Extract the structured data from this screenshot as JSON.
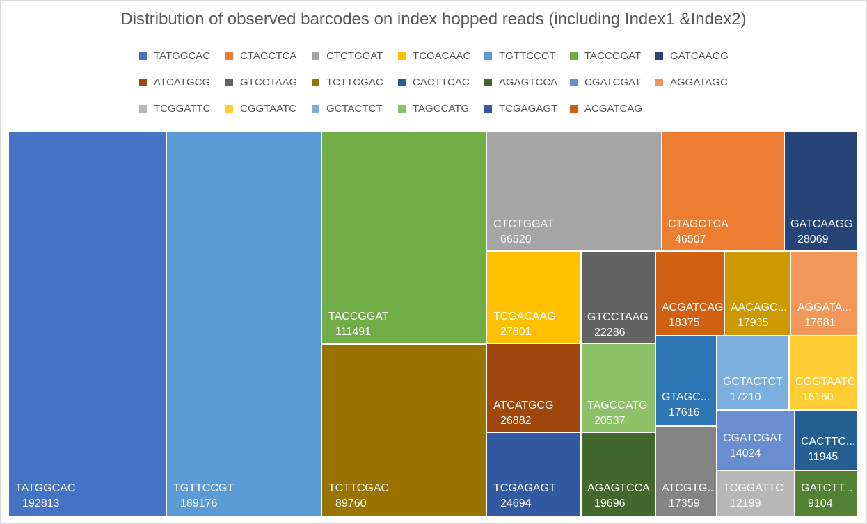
{
  "chart_data": {
    "type": "treemap",
    "title": "Distribution of observed barcodes on index hopped reads (including Index1 &Index2)",
    "legend": {
      "placement": "top",
      "entries": [
        {
          "name": "TATGGCAC",
          "color": "#4472c4"
        },
        {
          "name": "CTAGCTCA",
          "color": "#ed7d31"
        },
        {
          "name": "CTCTGGAT",
          "color": "#a5a5a5"
        },
        {
          "name": "TCGACAAG",
          "color": "#ffc000"
        },
        {
          "name": "TGTTCCGT",
          "color": "#5b9bd5"
        },
        {
          "name": "TACCGGAT",
          "color": "#70ad47"
        },
        {
          "name": "GATCAAGG",
          "color": "#264478"
        },
        {
          "name": "ATCATGCG",
          "color": "#9e480e"
        },
        {
          "name": "GTCCTAAG",
          "color": "#636363"
        },
        {
          "name": "TCTTCGAC",
          "color": "#997300"
        },
        {
          "name": "CACTTCAC",
          "color": "#255e91"
        },
        {
          "name": "AGAGTCCA",
          "color": "#43682b"
        },
        {
          "name": "CGATCGAT",
          "color": "#698ed0"
        },
        {
          "name": "AGGATAGC",
          "color": "#f1975a"
        },
        {
          "name": "TCGGATTC",
          "color": "#b7b7b7"
        },
        {
          "name": "CGGTAATC",
          "color": "#ffcd33"
        },
        {
          "name": "GCTACTCT",
          "color": "#7cafdd"
        },
        {
          "name": "TAGCCATG",
          "color": "#8cc168"
        },
        {
          "name": "TCGAGAGT",
          "color": "#335aa1"
        },
        {
          "name": "ACGATCAG",
          "color": "#d26012"
        }
      ]
    },
    "cells": [
      {
        "label": "TATGGCAC",
        "value": 192813,
        "color": "#4472c4"
      },
      {
        "label": "TGTTCCGT",
        "value": 189176,
        "color": "#5b9bd5"
      },
      {
        "label": "TACCGGAT",
        "value": 111491,
        "color": "#70ad47"
      },
      {
        "label": "TCTTCGAC",
        "value": 89760,
        "color": "#997300"
      },
      {
        "label": "CTCTGGAT",
        "value": 66520,
        "color": "#a5a5a5"
      },
      {
        "label": "CTAGCTCA",
        "value": 46507,
        "color": "#ed7d31"
      },
      {
        "label": "GATCAAGG",
        "value": 28069,
        "color": "#264478"
      },
      {
        "label": "TCGACAAG",
        "value": 27801,
        "color": "#ffc000"
      },
      {
        "label": "GTCCTAAG",
        "value": 22286,
        "color": "#636363"
      },
      {
        "label": "ATCATGCG",
        "value": 26882,
        "color": "#9e480e"
      },
      {
        "label": "TAGCCATG",
        "value": 20537,
        "color": "#8cc168"
      },
      {
        "label": "TCGAGAGT",
        "value": 24694,
        "color": "#335aa1"
      },
      {
        "label": "AGAGTCCA",
        "value": 19696,
        "color": "#43682b"
      },
      {
        "label": "ACGATCAG",
        "value": 18375,
        "color": "#d26012"
      },
      {
        "label": "AACAGC...",
        "value": 17935,
        "color": "#cc9a00"
      },
      {
        "label": "AGGATA...",
        "value": 17681,
        "color": "#f1975a"
      },
      {
        "label": "GTAGC...",
        "value": 17616,
        "color": "#2e75b6"
      },
      {
        "label": "GCTACTCT",
        "value": 17210,
        "color": "#7cafdd"
      },
      {
        "label": "CGGTAATC",
        "value": 16160,
        "color": "#ffcd33"
      },
      {
        "label": "CGATCGAT",
        "value": 14024,
        "color": "#698ed0"
      },
      {
        "label": "CACTTC...",
        "value": 11945,
        "color": "#255e91"
      },
      {
        "label": "ATCGTG...",
        "value": 17359,
        "color": "#848484"
      },
      {
        "label": "TCGGATTC",
        "value": 12199,
        "color": "#b7b7b7"
      },
      {
        "label": "GATCTT...",
        "value": 9104,
        "color": "#548235"
      }
    ]
  }
}
